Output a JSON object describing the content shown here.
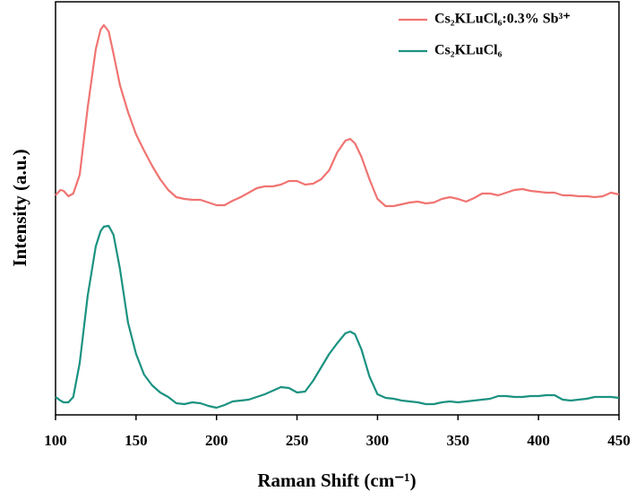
{
  "chart_data": {
    "type": "line",
    "xlabel": "Raman Shift (cm⁻¹)",
    "ylabel": "Intensity (a.u.)",
    "x": [
      100,
      103,
      105,
      108,
      111,
      115,
      120,
      125,
      128,
      130,
      133,
      136,
      140,
      145,
      150,
      155,
      160,
      165,
      170,
      175,
      180,
      185,
      190,
      195,
      200,
      205,
      210,
      215,
      220,
      225,
      230,
      235,
      240,
      245,
      250,
      255,
      260,
      265,
      270,
      275,
      280,
      283,
      286,
      290,
      295,
      300,
      305,
      310,
      315,
      320,
      325,
      330,
      335,
      340,
      345,
      350,
      355,
      360,
      365,
      370,
      375,
      380,
      385,
      390,
      395,
      400,
      405,
      410,
      415,
      420,
      425,
      430,
      435,
      440,
      445,
      450
    ],
    "series": [
      {
        "name": "Cs₂KLuCl₆:0.3% Sb³⁺",
        "color": "#f07472",
        "values": [
          245,
          251,
          250,
          244,
          247,
          268,
          343,
          408,
          430,
          435,
          428,
          403,
          368,
          338,
          313,
          295,
          278,
          263,
          251,
          243,
          241,
          240,
          240,
          237,
          234,
          234,
          239,
          243,
          248,
          253,
          255,
          255,
          257,
          261,
          261,
          257,
          258,
          263,
          273,
          293,
          306,
          308,
          303,
          288,
          263,
          241,
          233,
          233,
          235,
          237,
          238,
          236,
          237,
          241,
          243,
          241,
          238,
          242,
          247,
          247,
          245,
          248,
          251,
          252,
          250,
          249,
          248,
          248,
          245,
          245,
          244,
          244,
          243,
          244,
          248,
          246
        ]
      },
      {
        "name": "Cs₂KLuCl₆",
        "color": "#1b9281",
        "values": [
          20,
          16,
          14,
          14,
          20,
          58,
          133,
          188,
          205,
          210,
          211,
          201,
          163,
          103,
          68,
          45,
          33,
          25,
          20,
          13,
          12,
          14,
          13,
          10,
          8,
          11,
          15,
          16,
          17,
          20,
          23,
          27,
          31,
          30,
          25,
          26,
          38,
          53,
          68,
          80,
          91,
          93,
          90,
          73,
          43,
          23,
          19,
          18,
          16,
          15,
          14,
          12,
          12,
          14,
          15,
          14,
          15,
          16,
          17,
          18,
          21,
          21,
          20,
          20,
          21,
          21,
          22,
          22,
          17,
          16,
          17,
          18,
          20,
          20,
          20,
          19
        ]
      }
    ],
    "xlim": [
      100,
      450
    ],
    "xticks": [
      100,
      150,
      200,
      250,
      300,
      350,
      400,
      450
    ],
    "ylim": [
      0,
      461
    ],
    "legend": "upper right"
  }
}
